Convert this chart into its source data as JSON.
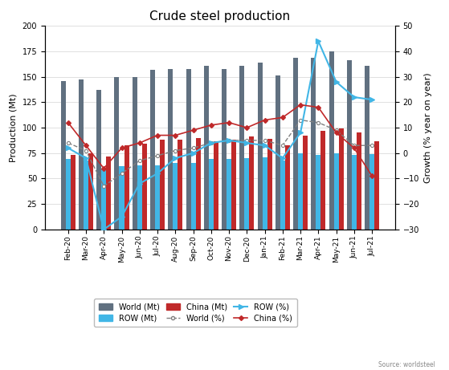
{
  "title": "Crude steel production",
  "months": [
    "Feb-20",
    "Mar-20",
    "Apr-20",
    "May-20",
    "Jun-20",
    "Jul-20",
    "Aug-20",
    "Sep-20",
    "Oct-20",
    "Nov-20",
    "Dec-20",
    "Jan-21",
    "Feb-21",
    "Mar-21",
    "Apr-21",
    "May-21",
    "Jun-21",
    "Jul-21"
  ],
  "world_mt": [
    146,
    147,
    137,
    150,
    150,
    157,
    158,
    158,
    161,
    158,
    161,
    164,
    151,
    169,
    169,
    175,
    166,
    161
  ],
  "row_mt": [
    69,
    68,
    60,
    62,
    63,
    63,
    65,
    65,
    69,
    69,
    70,
    71,
    68,
    75,
    73,
    75,
    73,
    74
  ],
  "china_mt": [
    73,
    75,
    72,
    83,
    84,
    88,
    88,
    90,
    87,
    88,
    91,
    89,
    83,
    92,
    97,
    99,
    95,
    87
  ],
  "world_pct": [
    4,
    1,
    -13,
    -8,
    -3,
    -1,
    1,
    2,
    4,
    5,
    5,
    5,
    3,
    13,
    12,
    9,
    3,
    3
  ],
  "row_pct": [
    2,
    -2,
    -30,
    -25,
    -12,
    -8,
    -2,
    0,
    4,
    5,
    4,
    3,
    -2,
    8,
    44,
    28,
    22,
    21
  ],
  "china_pct": [
    12,
    3,
    -6,
    2,
    4,
    7,
    7,
    9,
    11,
    12,
    10,
    13,
    14,
    19,
    18,
    8,
    2,
    -9
  ],
  "world_bar_color": "#607080",
  "row_bar_color": "#41b6e6",
  "china_bar_color": "#c0292a",
  "world_line_color": "#808080",
  "row_line_color": "#41b6e6",
  "china_line_color": "#c0292a",
  "ylabel_left": "Production (Mt)",
  "ylabel_right": "Growth (% year on year)",
  "ylim_left": [
    0,
    200
  ],
  "ylim_right": [
    -30,
    50
  ],
  "yticks_left": [
    0,
    25,
    50,
    75,
    100,
    125,
    150,
    175,
    200
  ],
  "yticks_right": [
    -30,
    -20,
    -10,
    0,
    10,
    20,
    30,
    40,
    50
  ],
  "source": "Source: worldsteel",
  "bg_color": "#f0f0f0"
}
